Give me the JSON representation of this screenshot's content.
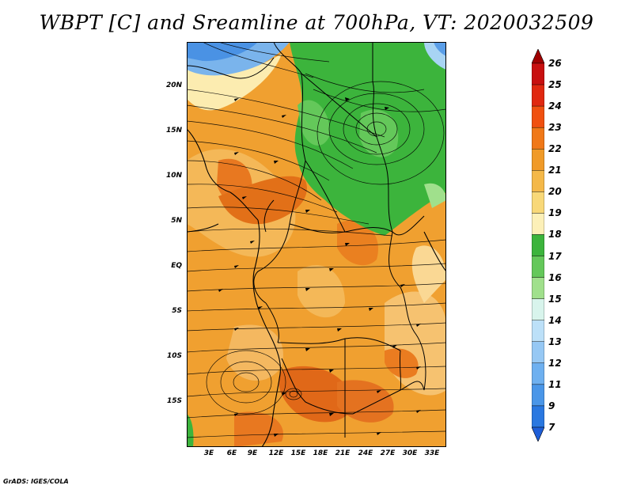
{
  "title": "WBPT [C] and Sreamline at 700hPa, VT: 2020032509",
  "credit": "GrADS: IGES/COLA",
  "map": {
    "latitude_labels": [
      "20N",
      "15N",
      "10N",
      "5N",
      "EQ",
      "5S",
      "10S",
      "15S"
    ],
    "longitude_labels": [
      "3E",
      "6E",
      "9E",
      "12E",
      "15E",
      "18E",
      "21E",
      "24E",
      "27E",
      "30E",
      "33E"
    ]
  },
  "colorbar": {
    "labels": [
      "26",
      "25",
      "24",
      "23",
      "22",
      "21",
      "20",
      "19",
      "18",
      "17",
      "16",
      "15",
      "14",
      "13",
      "12",
      "11",
      "9",
      "7"
    ],
    "colors": [
      "#a00000",
      "#c81010",
      "#e02810",
      "#f05010",
      "#f07818",
      "#f09a28",
      "#f4b848",
      "#f8d878",
      "#fcf0b8",
      "#3cb43c",
      "#64c85a",
      "#a0e08c",
      "#d8f4ec",
      "#bce0f8",
      "#96c8f4",
      "#6eb0f0",
      "#4a96e8",
      "#2a78e0",
      "#1e5ed8"
    ]
  }
}
